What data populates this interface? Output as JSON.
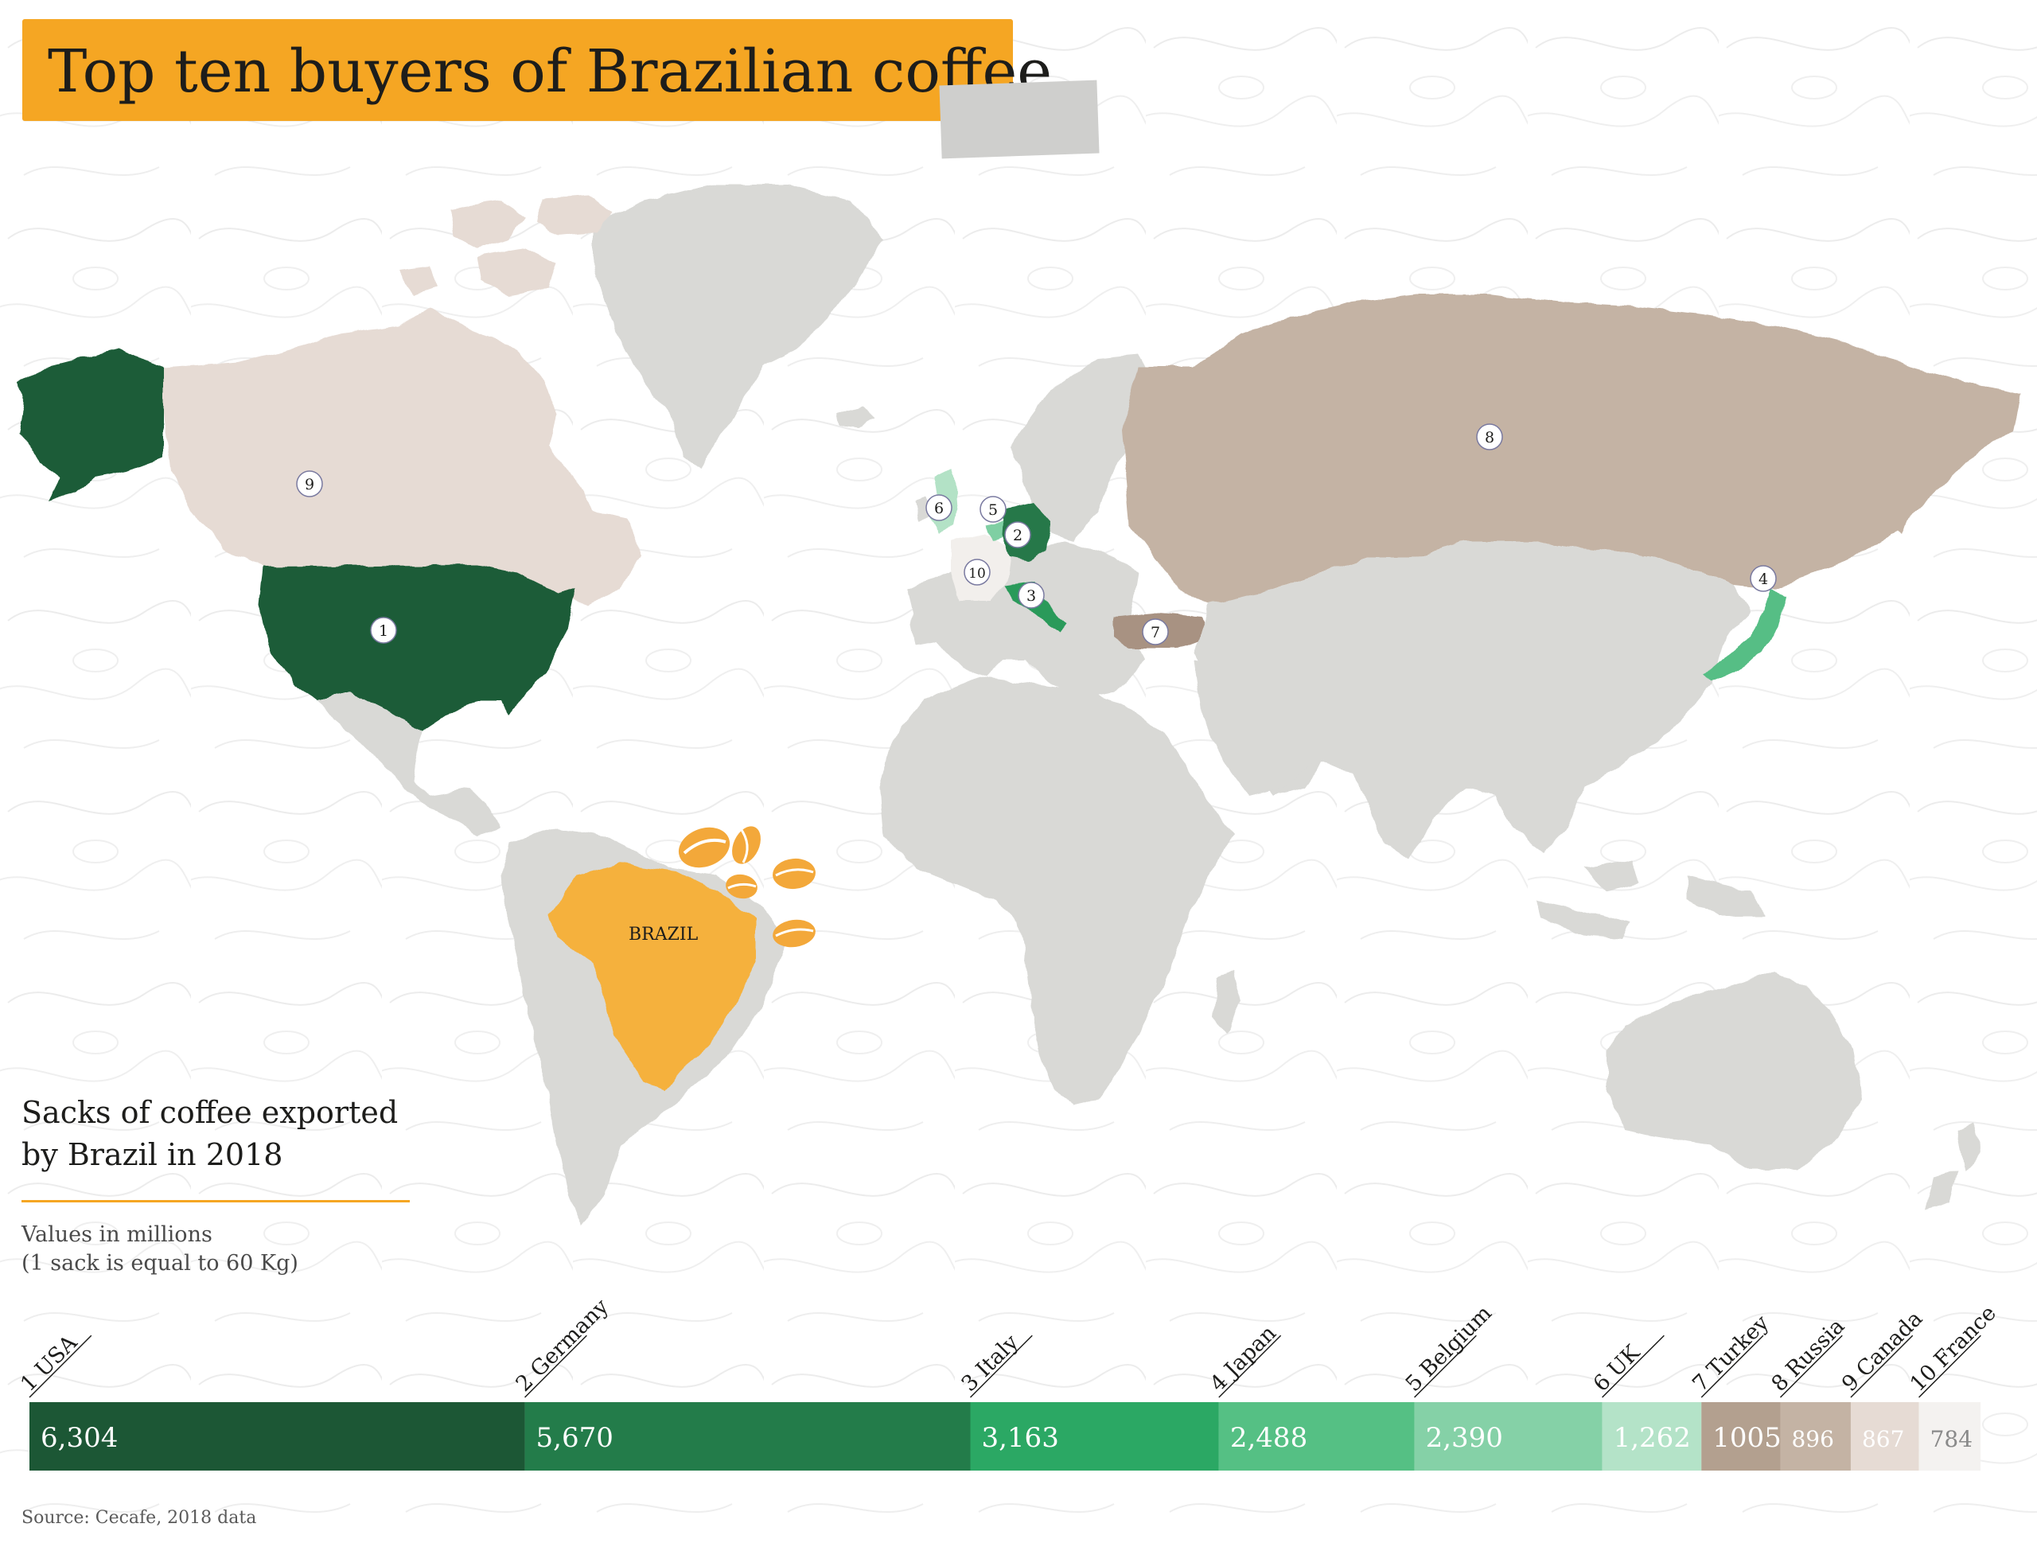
{
  "title": "Top ten buyers of Brazilian coffee",
  "map": {
    "brazil_label": "BRAZIL",
    "colors": {
      "land": "#d9d9d6",
      "brazil": "#f5b13d",
      "bean": "#f3a83a",
      "usa": "#1f5c37",
      "germany": "#27784a",
      "italy": "#2a9a5a",
      "japan": "#57be85",
      "belgium": "#7fcfa3",
      "uk": "#b3e2c6",
      "turkey": "#a89282",
      "russia": "#c4b3a4",
      "canada": "#e6dbd4",
      "france": "#f2efec"
    },
    "markers": [
      {
        "rank": "1",
        "country": "usa"
      },
      {
        "rank": "2",
        "country": "germany"
      },
      {
        "rank": "3",
        "country": "italy"
      },
      {
        "rank": "4",
        "country": "japan"
      },
      {
        "rank": "5",
        "country": "belgium"
      },
      {
        "rank": "6",
        "country": "uk"
      },
      {
        "rank": "7",
        "country": "turkey"
      },
      {
        "rank": "8",
        "country": "russia"
      },
      {
        "rank": "9",
        "country": "canada"
      },
      {
        "rank": "10",
        "country": "france"
      }
    ]
  },
  "legend": {
    "title_line1": "Sacks of coffee exported",
    "title_line2": "by Brazil in 2018",
    "note_line1": "Values in millions",
    "note_line2": "(1 sack is equal to 60 Kg)"
  },
  "chart_data": {
    "type": "bar",
    "orientation": "stacked-horizontal",
    "categories": [
      "1 USA",
      "2 Germany",
      "3 Italy",
      "4 Japan",
      "5 Belgium",
      "6 UK",
      "7 Turkey",
      "8 Russia",
      "9 Canada",
      "10 France"
    ],
    "values": [
      6304,
      5670,
      3163,
      2488,
      2390,
      1262,
      1005,
      896,
      867,
      784
    ],
    "value_labels": [
      "6,304",
      "5,670",
      "3,163",
      "2,488",
      "2,390",
      "1,262",
      "1005",
      "896",
      "867",
      "784"
    ],
    "colors": [
      "#1c5735",
      "#237c4a",
      "#2ba864",
      "#55c084",
      "#85d1a7",
      "#b4e3c8",
      "#b3a08f",
      "#c4b3a4",
      "#e6dbd4",
      "#f4f2f0"
    ],
    "value_text_colors": [
      "#ffffff",
      "#ffffff",
      "#ffffff",
      "#ffffff",
      "#ffffff",
      "#ffffff",
      "#ffffff",
      "#ffffff",
      "#ffffff",
      "#8a8a8a"
    ],
    "title": "",
    "xlabel": "",
    "ylabel": ""
  },
  "source": "Source: Cecafe, 2018 data"
}
